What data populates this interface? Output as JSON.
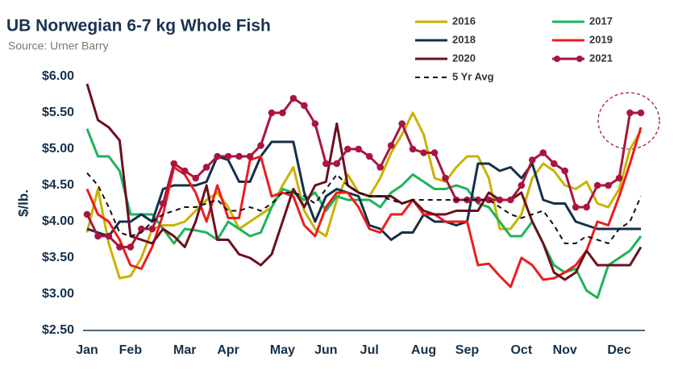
{
  "chart_data": {
    "type": "line",
    "title": "UB Norwegian 6-7 kg Whole Fish",
    "subtitle": "Source: Urner Barry",
    "y_label": "$/lb.",
    "categories": [
      "Jan",
      null,
      null,
      null,
      "Feb",
      null,
      null,
      null,
      null,
      "Mar",
      null,
      null,
      null,
      "Apr",
      null,
      null,
      null,
      null,
      "May",
      null,
      null,
      null,
      "Jun",
      null,
      null,
      null,
      "Jul",
      null,
      null,
      null,
      null,
      "Aug",
      null,
      null,
      null,
      "Sep",
      null,
      null,
      null,
      null,
      "Oct",
      null,
      null,
      null,
      "Nov",
      null,
      null,
      null,
      null,
      "Dec",
      null,
      null
    ],
    "ylim": [
      2.5,
      6
    ],
    "yticks": [
      {
        "value": 2.5,
        "label": "$2.50"
      },
      {
        "value": 3,
        "label": "$3.00"
      },
      {
        "value": 3.5,
        "label": "$3.50"
      },
      {
        "value": 4,
        "label": "$4.00"
      },
      {
        "value": 4.5,
        "label": "$4.50"
      },
      {
        "value": 5,
        "label": "$5.00"
      },
      {
        "value": 5.5,
        "label": "$5.50"
      },
      {
        "value": 6,
        "label": "$6.00"
      }
    ],
    "grid": false,
    "series": [
      {
        "name": "2016",
        "color": "#c9b200",
        "values": [
          3.85,
          4.45,
          3.7,
          3.22,
          3.25,
          3.5,
          3.9,
          3.95,
          3.95,
          4.0,
          4.15,
          4.3,
          4.4,
          4.2,
          3.9,
          4.0,
          4.1,
          4.2,
          4.5,
          4.75,
          4.15,
          3.9,
          3.8,
          4.3,
          4.65,
          4.4,
          4.35,
          4.6,
          4.95,
          5.2,
          5.5,
          5.2,
          4.6,
          4.55,
          4.75,
          4.9,
          4.9,
          4.6,
          3.9,
          3.9,
          4.1,
          4.6,
          4.8,
          4.7,
          4.5,
          4.45,
          4.55,
          4.25,
          4.2,
          4.45,
          5.0,
          5.25
        ]
      },
      {
        "name": "2017",
        "color": "#1db35c",
        "values": [
          5.28,
          4.9,
          4.9,
          4.7,
          4.1,
          4.1,
          4.1,
          3.9,
          3.7,
          3.9,
          3.88,
          3.85,
          3.75,
          4.0,
          3.9,
          3.8,
          3.85,
          4.2,
          4.45,
          4.4,
          4.3,
          4.4,
          4.15,
          4.35,
          4.3,
          4.3,
          4.3,
          4.2,
          4.4,
          4.5,
          4.65,
          4.55,
          4.45,
          4.45,
          4.5,
          4.45,
          4.25,
          4.2,
          4.0,
          3.8,
          3.8,
          4.0,
          3.7,
          3.4,
          3.3,
          3.35,
          3.05,
          2.95,
          3.4,
          3.5,
          3.6,
          3.8
        ]
      },
      {
        "name": "2018",
        "color": "#14304a",
        "values": [
          3.9,
          3.85,
          3.8,
          4.0,
          4.0,
          4.1,
          4.0,
          4.45,
          4.5,
          4.5,
          4.5,
          4.55,
          4.9,
          4.85,
          4.55,
          4.55,
          4.9,
          5.1,
          5.1,
          5.1,
          4.4,
          4.0,
          4.35,
          4.45,
          4.4,
          4.35,
          3.95,
          3.9,
          3.75,
          3.85,
          3.85,
          4.1,
          4.0,
          4.0,
          3.95,
          4.0,
          4.8,
          4.8,
          4.7,
          4.75,
          4.6,
          4.8,
          4.3,
          4.25,
          4.25,
          4.0,
          3.95,
          3.9,
          3.9,
          3.9,
          3.9,
          3.9
        ]
      },
      {
        "name": "2019",
        "color": "#ee1c1c",
        "values": [
          4.45,
          4.1,
          4.0,
          3.75,
          3.4,
          3.35,
          3.65,
          4.1,
          4.75,
          4.65,
          4.4,
          4.0,
          4.5,
          4.05,
          4.05,
          4.85,
          4.9,
          4.35,
          4.4,
          4.35,
          3.95,
          3.8,
          4.2,
          4.4,
          4.4,
          4.2,
          3.9,
          3.85,
          4.1,
          4.1,
          4.3,
          4.1,
          4.1,
          4.0,
          4.0,
          4.0,
          3.4,
          3.42,
          3.25,
          3.1,
          3.5,
          3.4,
          3.2,
          3.22,
          3.3,
          3.4,
          3.6,
          4.0,
          3.95,
          4.35,
          4.8,
          5.3
        ]
      },
      {
        "name": "2020",
        "color": "#6b0f1f",
        "values": [
          5.9,
          5.4,
          5.3,
          5.12,
          3.8,
          3.75,
          3.7,
          3.9,
          3.8,
          3.65,
          4.0,
          4.5,
          3.75,
          3.75,
          3.55,
          3.5,
          3.4,
          3.55,
          4.0,
          4.45,
          4.2,
          4.5,
          4.55,
          5.35,
          4.5,
          4.4,
          4.35,
          4.35,
          4.35,
          4.25,
          4.3,
          4.15,
          4.1,
          4.1,
          4.15,
          4.15,
          4.15,
          4.4,
          4.3,
          4.3,
          4.4,
          4.0,
          3.7,
          3.3,
          3.2,
          3.3,
          3.6,
          3.4,
          3.4,
          3.4,
          3.4,
          3.65
        ]
      },
      {
        "name": "2021",
        "color": "#a8163e",
        "marker": "circle",
        "values": [
          4.1,
          3.8,
          3.8,
          3.65,
          3.65,
          3.9,
          3.9,
          4.25,
          4.8,
          4.7,
          4.6,
          4.75,
          4.9,
          4.9,
          4.9,
          4.9,
          5.05,
          5.5,
          5.5,
          5.7,
          5.6,
          5.35,
          4.8,
          4.8,
          5.0,
          5.0,
          4.9,
          4.75,
          5.05,
          5.35,
          5.0,
          4.95,
          4.95,
          4.6,
          4.3,
          4.3,
          4.3,
          4.3,
          4.3,
          4.3,
          4.5,
          4.85,
          4.95,
          4.8,
          4.7,
          4.2,
          4.2,
          4.5,
          4.5,
          4.6,
          5.5,
          5.5
        ]
      },
      {
        "name": "5 Yr Avg",
        "color": "#111111",
        "line_style": "dashed",
        "values": [
          4.67,
          4.5,
          4.2,
          3.85,
          3.8,
          3.85,
          4.0,
          4.1,
          4.15,
          4.2,
          4.2,
          4.25,
          4.3,
          4.15,
          4.15,
          4.2,
          4.15,
          4.25,
          4.4,
          4.4,
          4.35,
          4.25,
          4.45,
          4.65,
          4.5,
          4.4,
          4.35,
          4.35,
          4.3,
          4.25,
          4.3,
          4.3,
          4.3,
          4.3,
          4.3,
          4.3,
          4.3,
          4.3,
          4.2,
          4.1,
          4.05,
          4.1,
          4.15,
          3.95,
          3.7,
          3.7,
          3.8,
          3.75,
          3.7,
          3.9,
          4.0,
          4.35
        ]
      }
    ]
  }
}
